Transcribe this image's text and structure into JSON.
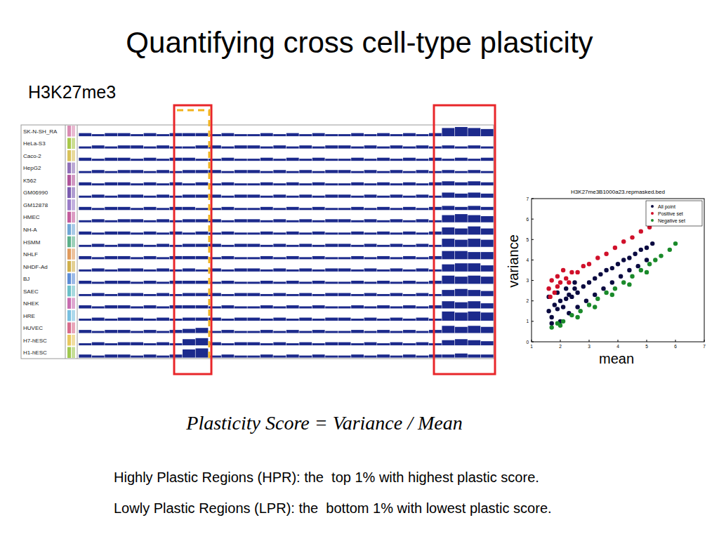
{
  "slide": {
    "title": "Quantifying cross cell-type plasticity",
    "track_panel": {
      "label": "H3K27me3",
      "ylim": [
        0,
        1
      ],
      "tracks": [
        {
          "name": "SK-N-SH_RA",
          "color": "#d98cb3",
          "values": [
            0.3,
            0.2,
            0.3,
            0.3,
            0.2,
            0.3,
            0.2,
            0.3,
            0.3,
            0.3,
            0.2,
            0.3,
            0.2,
            0.2,
            0.3,
            0.2,
            0.3,
            0.2,
            0.3,
            0.2,
            0.2,
            0.3,
            0.2,
            0.3,
            0.2,
            0.3,
            0.2,
            0.3,
            0.8,
            0.9,
            0.8,
            0.7
          ]
        },
        {
          "name": "HeLa-S3",
          "color": "#a8c84a",
          "values": [
            0.2,
            0.3,
            0.2,
            0.3,
            0.3,
            0.2,
            0.3,
            0.2,
            0.2,
            0.3,
            0.3,
            0.2,
            0.3,
            0.3,
            0.2,
            0.3,
            0.2,
            0.3,
            0.2,
            0.3,
            0.3,
            0.2,
            0.3,
            0.2,
            0.3,
            0.2,
            0.3,
            0.2,
            0.3,
            0.2,
            0.3,
            0.2
          ]
        },
        {
          "name": "Caco-2",
          "color": "#d9c25a",
          "values": [
            0.3,
            0.2,
            0.3,
            0.3,
            0.2,
            0.3,
            0.2,
            0.3,
            0.3,
            0.2,
            0.2,
            0.3,
            0.2,
            0.2,
            0.3,
            0.2,
            0.3,
            0.2,
            0.3,
            0.2,
            0.2,
            0.3,
            0.2,
            0.3,
            0.2,
            0.3,
            0.2,
            0.3,
            0.2,
            0.3,
            0.2,
            0.3
          ]
        },
        {
          "name": "HepG2",
          "color": "#8f6fb8",
          "values": [
            0.2,
            0.3,
            0.2,
            0.3,
            0.3,
            0.2,
            0.3,
            0.2,
            0.3,
            0.3,
            0.3,
            0.2,
            0.3,
            0.3,
            0.2,
            0.3,
            0.2,
            0.3,
            0.2,
            0.3,
            0.3,
            0.2,
            0.3,
            0.2,
            0.3,
            0.2,
            0.3,
            0.2,
            0.3,
            0.2,
            0.3,
            0.2
          ]
        },
        {
          "name": "K562",
          "color": "#b0549a",
          "values": [
            0.3,
            0.2,
            0.3,
            0.3,
            0.2,
            0.3,
            0.2,
            0.3,
            0.2,
            0.3,
            0.2,
            0.3,
            0.2,
            0.2,
            0.3,
            0.2,
            0.3,
            0.2,
            0.3,
            0.2,
            0.2,
            0.3,
            0.2,
            0.3,
            0.2,
            0.3,
            0.2,
            0.3,
            0.4,
            0.3,
            0.4,
            0.3
          ]
        },
        {
          "name": "GM06990",
          "color": "#7a5cb0",
          "values": [
            0.2,
            0.3,
            0.2,
            0.3,
            0.3,
            0.2,
            0.3,
            0.2,
            0.3,
            0.3,
            0.3,
            0.2,
            0.3,
            0.3,
            0.2,
            0.3,
            0.2,
            0.3,
            0.2,
            0.3,
            0.3,
            0.2,
            0.3,
            0.2,
            0.3,
            0.2,
            0.3,
            0.2,
            0.5,
            0.4,
            0.5,
            0.4
          ]
        },
        {
          "name": "GM12878",
          "color": "#9a7cc8",
          "values": [
            0.3,
            0.2,
            0.3,
            0.3,
            0.2,
            0.3,
            0.2,
            0.3,
            0.3,
            0.2,
            0.2,
            0.3,
            0.2,
            0.2,
            0.3,
            0.2,
            0.3,
            0.2,
            0.3,
            0.2,
            0.2,
            0.3,
            0.2,
            0.3,
            0.2,
            0.3,
            0.2,
            0.3,
            0.4,
            0.3,
            0.4,
            0.3
          ]
        },
        {
          "name": "HMEC",
          "color": "#c45c9c",
          "values": [
            0.2,
            0.3,
            0.2,
            0.3,
            0.3,
            0.2,
            0.3,
            0.2,
            0.3,
            0.3,
            0.3,
            0.2,
            0.3,
            0.3,
            0.2,
            0.3,
            0.2,
            0.3,
            0.2,
            0.3,
            0.3,
            0.2,
            0.3,
            0.2,
            0.3,
            0.2,
            0.3,
            0.2,
            0.7,
            0.8,
            0.7,
            0.6
          ]
        },
        {
          "name": "NH-A",
          "color": "#6fa6d6",
          "values": [
            0.3,
            0.2,
            0.3,
            0.3,
            0.2,
            0.3,
            0.2,
            0.3,
            0.2,
            0.3,
            0.2,
            0.3,
            0.2,
            0.2,
            0.3,
            0.2,
            0.3,
            0.2,
            0.3,
            0.2,
            0.2,
            0.3,
            0.2,
            0.3,
            0.2,
            0.3,
            0.2,
            0.3,
            0.7,
            0.6,
            0.8,
            0.6
          ]
        },
        {
          "name": "HSMM",
          "color": "#5cb08a",
          "values": [
            0.2,
            0.3,
            0.2,
            0.3,
            0.3,
            0.2,
            0.3,
            0.2,
            0.3,
            0.3,
            0.3,
            0.2,
            0.3,
            0.3,
            0.2,
            0.3,
            0.2,
            0.3,
            0.2,
            0.3,
            0.3,
            0.2,
            0.3,
            0.2,
            0.3,
            0.2,
            0.3,
            0.2,
            0.8,
            0.7,
            0.8,
            0.7
          ]
        },
        {
          "name": "NHLF",
          "color": "#e09a5c",
          "values": [
            0.3,
            0.2,
            0.3,
            0.3,
            0.2,
            0.3,
            0.2,
            0.3,
            0.3,
            0.3,
            0.2,
            0.3,
            0.2,
            0.2,
            0.3,
            0.2,
            0.3,
            0.2,
            0.3,
            0.2,
            0.2,
            0.3,
            0.2,
            0.3,
            0.2,
            0.3,
            0.2,
            0.3,
            0.8,
            0.8,
            0.7,
            0.7
          ]
        },
        {
          "name": "NHDF-Ad",
          "color": "#d0b04c",
          "values": [
            0.2,
            0.3,
            0.2,
            0.3,
            0.3,
            0.2,
            0.3,
            0.2,
            0.3,
            0.2,
            0.3,
            0.2,
            0.3,
            0.3,
            0.2,
            0.3,
            0.2,
            0.3,
            0.2,
            0.3,
            0.3,
            0.2,
            0.3,
            0.2,
            0.3,
            0.2,
            0.3,
            0.2,
            0.7,
            0.8,
            0.8,
            0.6
          ]
        },
        {
          "name": "BJ",
          "color": "#5c8cd6",
          "values": [
            0.3,
            0.2,
            0.3,
            0.3,
            0.2,
            0.3,
            0.2,
            0.3,
            0.3,
            0.3,
            0.2,
            0.3,
            0.2,
            0.2,
            0.3,
            0.2,
            0.3,
            0.2,
            0.3,
            0.2,
            0.2,
            0.3,
            0.2,
            0.3,
            0.2,
            0.3,
            0.2,
            0.3,
            0.8,
            0.7,
            0.8,
            0.7
          ]
        },
        {
          "name": "SAEC",
          "color": "#6cc0c8",
          "values": [
            0.2,
            0.3,
            0.2,
            0.3,
            0.3,
            0.2,
            0.3,
            0.2,
            0.3,
            0.3,
            0.3,
            0.2,
            0.3,
            0.3,
            0.2,
            0.3,
            0.2,
            0.3,
            0.2,
            0.3,
            0.3,
            0.2,
            0.3,
            0.2,
            0.3,
            0.2,
            0.3,
            0.2,
            0.6,
            0.7,
            0.6,
            0.5
          ]
        },
        {
          "name": "NHEK",
          "color": "#c86cb0",
          "values": [
            0.3,
            0.2,
            0.3,
            0.3,
            0.2,
            0.3,
            0.2,
            0.3,
            0.3,
            0.3,
            0.2,
            0.3,
            0.2,
            0.2,
            0.3,
            0.2,
            0.3,
            0.2,
            0.3,
            0.2,
            0.2,
            0.3,
            0.2,
            0.3,
            0.2,
            0.3,
            0.2,
            0.3,
            0.7,
            0.6,
            0.7,
            0.5
          ]
        },
        {
          "name": "HRE",
          "color": "#78c0e0",
          "values": [
            0.2,
            0.3,
            0.2,
            0.3,
            0.3,
            0.2,
            0.3,
            0.2,
            0.3,
            0.3,
            0.3,
            0.2,
            0.3,
            0.3,
            0.2,
            0.3,
            0.2,
            0.3,
            0.2,
            0.3,
            0.3,
            0.2,
            0.3,
            0.2,
            0.3,
            0.2,
            0.3,
            0.2,
            0.9,
            0.8,
            0.9,
            0.8
          ]
        },
        {
          "name": "HUVEC",
          "color": "#d86c8c",
          "values": [
            0.3,
            0.2,
            0.3,
            0.3,
            0.2,
            0.3,
            0.2,
            0.3,
            0.4,
            0.5,
            0.2,
            0.3,
            0.2,
            0.2,
            0.3,
            0.2,
            0.3,
            0.2,
            0.3,
            0.2,
            0.2,
            0.3,
            0.2,
            0.3,
            0.2,
            0.3,
            0.2,
            0.3,
            0.7,
            0.6,
            0.7,
            0.6
          ]
        },
        {
          "name": "H7-hESC",
          "color": "#e8c860",
          "values": [
            0.2,
            0.3,
            0.2,
            0.3,
            0.3,
            0.2,
            0.3,
            0.2,
            0.6,
            0.7,
            0.3,
            0.2,
            0.3,
            0.3,
            0.2,
            0.3,
            0.2,
            0.3,
            0.2,
            0.3,
            0.3,
            0.2,
            0.3,
            0.2,
            0.3,
            0.2,
            0.3,
            0.2,
            0.5,
            0.6,
            0.5,
            0.4
          ]
        },
        {
          "name": "H1-hESC",
          "color": "#a0c850",
          "values": [
            0.3,
            0.2,
            0.3,
            0.3,
            0.2,
            0.3,
            0.2,
            0.3,
            0.8,
            0.9,
            0.2,
            0.3,
            0.2,
            0.2,
            0.3,
            0.2,
            0.3,
            0.2,
            0.3,
            0.2,
            0.2,
            0.3,
            0.2,
            0.3,
            0.2,
            0.3,
            0.2,
            0.3,
            0.3,
            0.4,
            0.3,
            0.3
          ]
        }
      ]
    },
    "formula": "Plasticity Score = Variance / Mean",
    "notes": [
      "Highly Plastic Regions (HPR): the  top 1% with highest plastic score.",
      "Lowly Plastic Regions (LPR): the  bottom 1% with lowest plastic score."
    ]
  },
  "chart_data": {
    "type": "scatter",
    "title": "H3K27me3B1000a23.repmasked.bed",
    "x_label": "mean",
    "y_label": "variance",
    "xlim": [
      1,
      7
    ],
    "xticks": [
      1,
      2,
      3,
      4,
      5,
      6,
      7
    ],
    "ylim": [
      0,
      7
    ],
    "yticks": [
      0,
      1,
      2,
      3,
      4,
      5,
      6,
      7
    ],
    "legend": "upper right",
    "marker": "circle",
    "series": [
      {
        "name": "All point",
        "color": "#0a0a40",
        "x": [
          1.6,
          1.7,
          1.8,
          1.9,
          2.0,
          2.1,
          2.2,
          2.3,
          2.4,
          2.5,
          2.6,
          2.8,
          3.0,
          3.2,
          3.4,
          3.6,
          3.8,
          4.0,
          4.2,
          4.4,
          4.6,
          4.8,
          5.0,
          5.2,
          1.7,
          2.0,
          2.3,
          2.6,
          2.9,
          3.2,
          3.5,
          3.8,
          4.1,
          4.4,
          4.7,
          5.0,
          1.6,
          1.9,
          2.2,
          2.5
        ],
        "values": [
          1.5,
          1.2,
          1.8,
          1.6,
          2.0,
          1.7,
          2.1,
          2.3,
          2.2,
          2.6,
          2.4,
          2.7,
          2.9,
          3.1,
          3.3,
          3.5,
          3.6,
          3.8,
          4.0,
          4.1,
          4.3,
          4.5,
          4.6,
          4.8,
          0.9,
          1.0,
          1.4,
          1.7,
          2.0,
          2.3,
          2.6,
          2.9,
          3.2,
          3.5,
          3.7,
          4.0,
          2.2,
          2.4,
          2.6,
          2.9
        ]
      },
      {
        "name": "Positive set",
        "color": "#d0102a",
        "x": [
          1.6,
          1.7,
          1.8,
          1.9,
          2.0,
          2.2,
          2.4,
          2.6,
          2.8,
          3.0,
          3.3,
          3.6,
          3.9,
          4.2,
          4.5,
          4.8,
          5.1,
          5.4,
          1.65,
          1.9,
          2.1,
          2.3
        ],
        "values": [
          2.6,
          3.0,
          2.4,
          3.2,
          2.9,
          3.1,
          3.4,
          3.4,
          3.7,
          3.8,
          4.1,
          4.3,
          4.6,
          4.9,
          5.1,
          5.4,
          5.6,
          5.8,
          2.2,
          2.7,
          3.5,
          2.9
        ]
      },
      {
        "name": "Negative set",
        "color": "#1a8a2a",
        "x": [
          1.7,
          1.9,
          2.1,
          2.4,
          2.7,
          3.0,
          3.3,
          3.6,
          3.9,
          4.2,
          4.5,
          4.8,
          5.1,
          5.3,
          5.5,
          5.8,
          6.0,
          2.0,
          2.6,
          3.2,
          3.8,
          4.4,
          5.0
        ],
        "values": [
          0.7,
          0.9,
          1.0,
          1.3,
          1.5,
          1.8,
          2.1,
          2.4,
          2.6,
          2.9,
          3.2,
          3.5,
          3.8,
          4.0,
          4.2,
          4.5,
          4.8,
          0.8,
          1.2,
          1.7,
          2.3,
          2.8,
          3.4
        ]
      }
    ]
  }
}
